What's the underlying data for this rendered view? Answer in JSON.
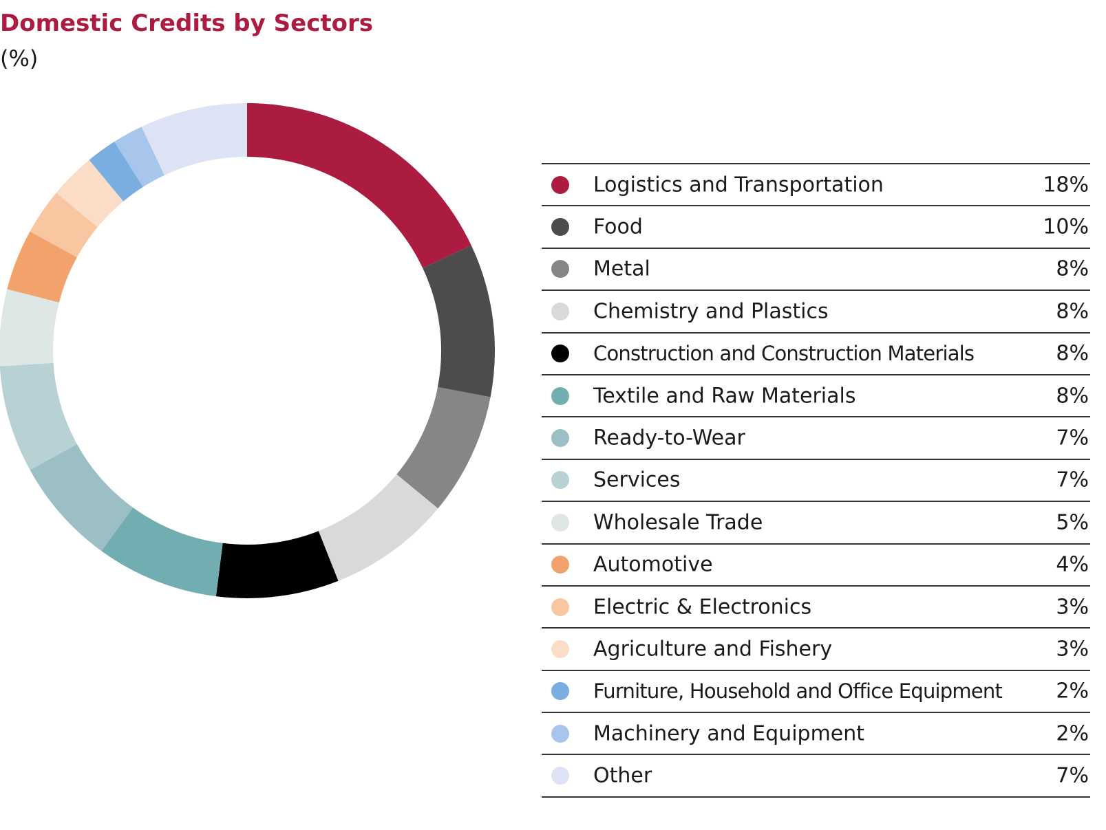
{
  "chart_data": {
    "type": "pie",
    "title": "Domestic Credits by Sectors",
    "subtitle": "(%)",
    "unit": "%",
    "categories": [
      "Logistics and Transportation",
      "Food",
      "Metal",
      "Chemistry and Plastics",
      "Construction and Construction Materials",
      "Textile and Raw Materials",
      "Ready-to-Wear",
      "Services",
      "Wholesale Trade",
      "Automotive",
      "Electric & Electronics",
      "Agriculture and Fishery",
      "Furniture, Household and Office Equipment",
      "Machinery and Equipment",
      "Other"
    ],
    "values": [
      18,
      10,
      8,
      8,
      8,
      8,
      7,
      7,
      5,
      4,
      3,
      3,
      2,
      2,
      7
    ],
    "value_labels": [
      "18%",
      "10%",
      "8%",
      "8%",
      "8%",
      "8%",
      "7%",
      "7%",
      "5%",
      "4%",
      "3%",
      "3%",
      "2%",
      "2%",
      "7%"
    ],
    "colors": [
      "#ab1c40",
      "#4c4c4e",
      "#858688",
      "#d9d9db",
      "#000000",
      "#72adb1",
      "#9bbfc4",
      "#b8d1d4",
      "#dde8e6",
      "#f2a36c",
      "#f8c6a0",
      "#fbdcc6",
      "#7aaee0",
      "#a8c6ec",
      "#dde3f4"
    ],
    "legend_position": "right",
    "style": "donut"
  }
}
